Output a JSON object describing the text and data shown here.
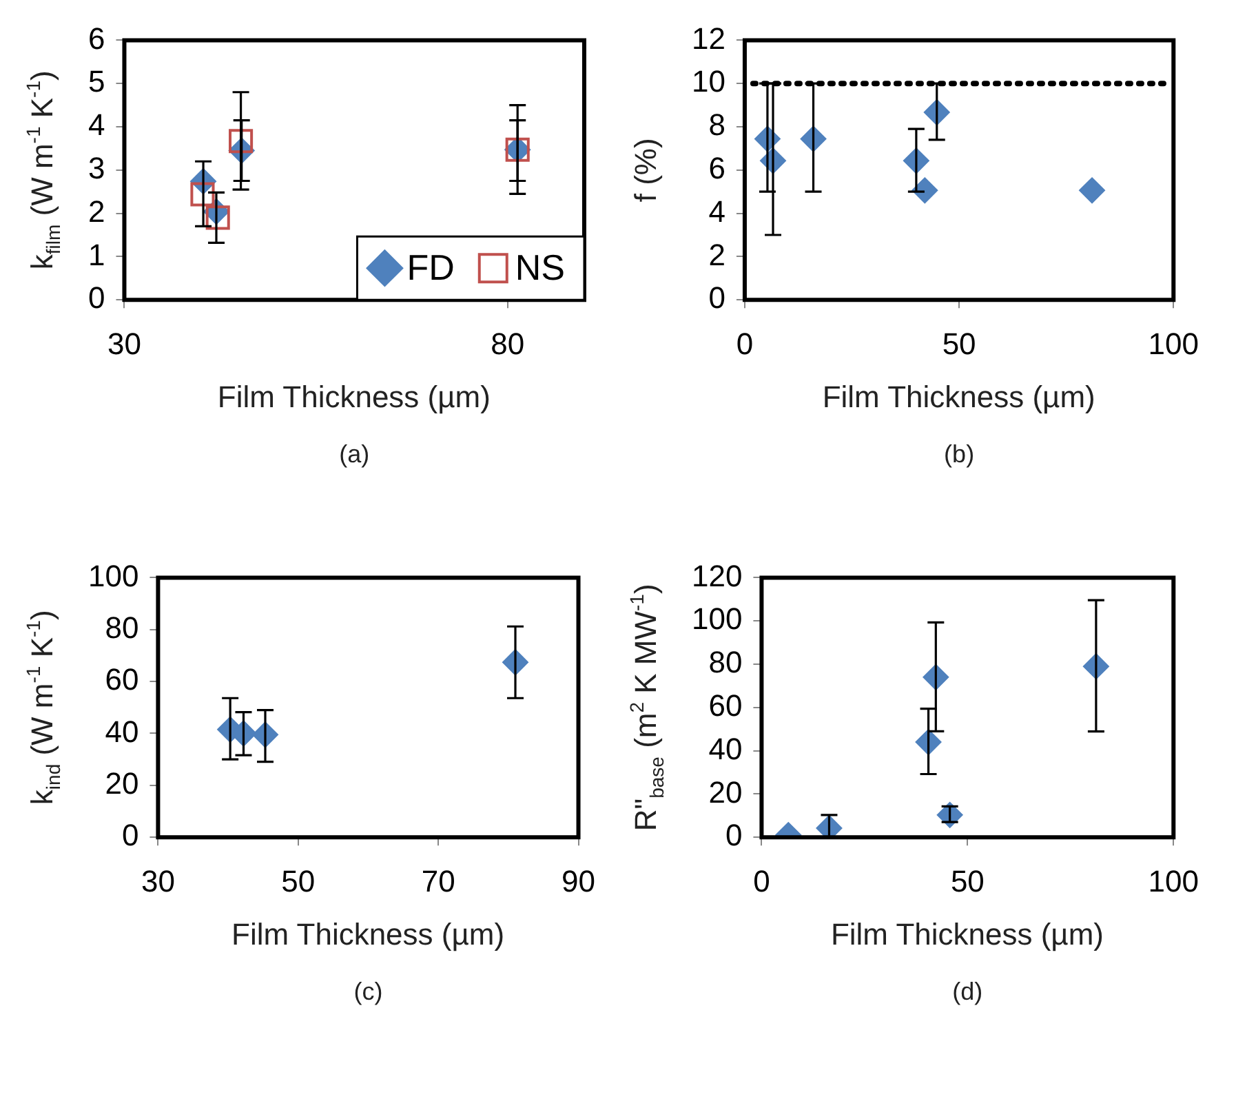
{
  "chart_data": [
    {
      "type": "scatter",
      "xlabel": "Film Thickness (µm)",
      "ylabel": "k$_{film}$ (W m$^{-1}$ K$^{-1}$)",
      "xlim": [
        30,
        90
      ],
      "xticks": [
        30,
        80
      ],
      "ylim": [
        0,
        6
      ],
      "yticks": [
        0,
        1,
        2,
        3,
        4,
        5,
        6
      ],
      "grid": false,
      "legend": "bottom right",
      "annotations": [
        "(a)"
      ],
      "series": [
        {
          "name": "FD",
          "color": "#4f81bd",
          "marker": "diamond",
          "x": [
            40.3,
            42.0,
            45.3,
            81.3
          ],
          "values": [
            2.74,
            2.04,
            3.45,
            3.47
          ],
          "errors": [
            [
              1.7,
              3.2
            ],
            [
              1.32,
              2.48
            ],
            [
              2.75,
              4.15
            ],
            [
              2.75,
              4.15
            ]
          ]
        },
        {
          "name": "NS",
          "color": "#c0504d",
          "marker": "square",
          "x": [
            40.2,
            42.2,
            45.2,
            81.3
          ],
          "values": [
            2.44,
            1.9,
            3.67,
            3.47
          ],
          "errors": [
            null,
            null,
            [
              2.55,
              4.8
            ],
            [
              2.45,
              4.5
            ]
          ]
        }
      ]
    },
    {
      "type": "scatter",
      "xlabel": "Film Thickness (µm)",
      "ylabel": "f (%)",
      "xlim": [
        0,
        100
      ],
      "xticks": [
        0,
        50,
        100
      ],
      "ylim": [
        0,
        12
      ],
      "yticks": [
        0,
        2,
        4,
        6,
        8,
        10,
        12
      ],
      "grid": false,
      "annotations": [
        "(b)"
      ],
      "ref_lines": [
        {
          "axis": "y",
          "value": 10,
          "color": "#000000",
          "line_style": "dotted"
        }
      ],
      "series": [
        {
          "color": "#4f81bd",
          "marker": "diamond",
          "x": [
            5.3,
            6.6,
            16.0,
            40.0,
            42.0,
            44.8,
            81.0
          ],
          "values": [
            7.44,
            6.43,
            7.44,
            6.43,
            5.06,
            8.67,
            5.06
          ],
          "errors": [
            [
              5,
              10
            ],
            [
              3,
              10
            ],
            [
              5,
              10
            ],
            [
              5,
              7.9
            ],
            null,
            [
              7.4,
              10
            ],
            null
          ]
        }
      ]
    },
    {
      "type": "scatter",
      "xlabel": "Film Thickness (µm)",
      "ylabel": "k$_{ind}$ (W m$^{-1}$ K$^{-1}$)",
      "xlim": [
        30,
        90
      ],
      "xticks": [
        30,
        50,
        70,
        90
      ],
      "ylim": [
        0,
        100
      ],
      "yticks": [
        0,
        20,
        40,
        60,
        80,
        100
      ],
      "grid": false,
      "annotations": [
        "(c)"
      ],
      "series": [
        {
          "color": "#4f81bd",
          "marker": "diamond",
          "x": [
            40.3,
            42.2,
            45.3,
            81.0
          ],
          "values": [
            41.5,
            40,
            39.5,
            67.4
          ],
          "errors": [
            [
              30,
              53.6
            ],
            [
              31.6,
              48.2
            ],
            [
              29.1,
              49
            ],
            [
              53.6,
              81.2
            ]
          ]
        }
      ]
    },
    {
      "type": "scatter",
      "xlabel": "Film Thickness (µm)",
      "ylabel": "R\"$_{base}$ (m$^{2}$ K MW$^{-1}$)",
      "xlim": [
        0,
        100
      ],
      "xticks": [
        0,
        50,
        100
      ],
      "ylim": [
        0,
        120
      ],
      "yticks": [
        0,
        20,
        40,
        60,
        80,
        100,
        120
      ],
      "grid": false,
      "annotations": [
        "(d)"
      ],
      "series": [
        {
          "color": "#4f81bd",
          "marker": "diamond",
          "x": [
            6.5,
            16.4,
            40.5,
            42.3,
            45.7,
            81.2
          ],
          "values": [
            1,
            4.2,
            44,
            74,
            10.3,
            79
          ],
          "errors": [
            null,
            [
              0,
              10.3
            ],
            [
              29.2,
              59.4
            ],
            [
              49,
              99.3
            ],
            [
              7,
              14.3
            ],
            [
              48.9,
              109.6
            ]
          ]
        }
      ]
    }
  ]
}
